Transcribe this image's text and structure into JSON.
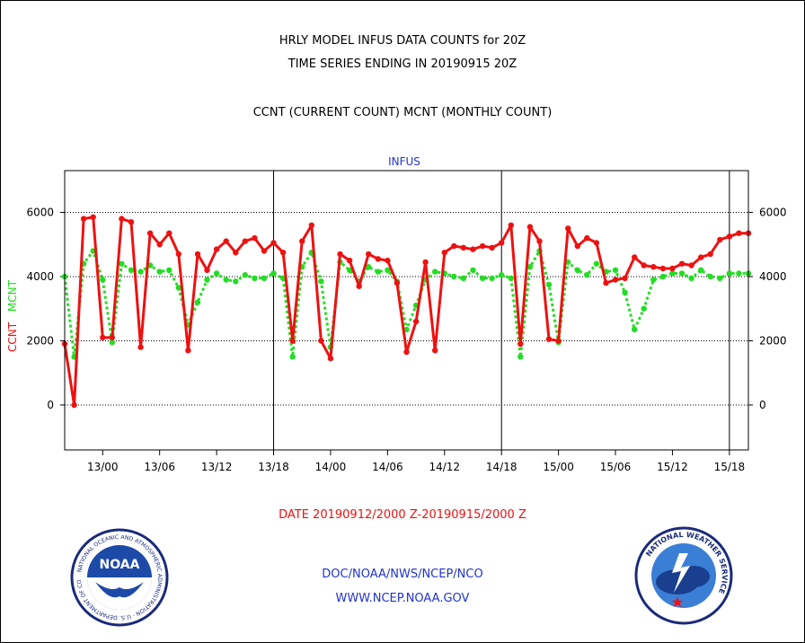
{
  "header": {
    "title1": "HRLY MODEL INFUS DATA COUNTS for 20Z",
    "title2": "TIME SERIES ENDING IN 20190915 20Z",
    "subtitle": "CCNT (CURRENT COUNT) MCNT (MONTHLY COUNT)"
  },
  "footer": {
    "date_range": "DATE 20190912/2000 Z-20190915/2000 Z",
    "org": "DOC/NOAA/NWS/NCEP/NCO",
    "url": "WWW.NCEP.NOAA.GOV"
  },
  "logos": {
    "noaa": "NOAA",
    "noaa_ring": "NATIONAL OCEANIC AND ATMOSPHERIC ADMINISTRATION · U.S. DEPARTMENT OF COMMERCE",
    "nws_ring": "NATIONAL WEATHER SERVICE"
  },
  "colors": {
    "ccnt": "#ee1111",
    "mcnt": "#22dd22",
    "axis_text": "#000000",
    "label_blue": "#2233cc"
  },
  "chart_data": {
    "type": "line",
    "title": "INFUS",
    "ylabel_series": [
      "CCNT",
      "MCNT"
    ],
    "ylim": [
      -1400,
      7300
    ],
    "yticks": [
      0,
      2000,
      4000,
      6000
    ],
    "xlim": [
      0,
      72
    ],
    "xticks": [
      {
        "x": 4,
        "label": "13/00"
      },
      {
        "x": 10,
        "label": "13/06"
      },
      {
        "x": 16,
        "label": "13/12"
      },
      {
        "x": 22,
        "label": "13/18"
      },
      {
        "x": 28,
        "label": "14/00"
      },
      {
        "x": 34,
        "label": "14/06"
      },
      {
        "x": 40,
        "label": "14/12"
      },
      {
        "x": 46,
        "label": "14/18"
      },
      {
        "x": 52,
        "label": "15/00"
      },
      {
        "x": 58,
        "label": "15/06"
      },
      {
        "x": 64,
        "label": "15/12"
      },
      {
        "x": 70,
        "label": "15/18"
      }
    ],
    "vlines": [
      22,
      46,
      70
    ],
    "grid": "horizontal dotted",
    "series": [
      {
        "name": "CCNT",
        "values": [
          1900,
          0,
          5800,
          5850,
          2100,
          2100,
          5800,
          5700,
          1800,
          5350,
          5000,
          5350,
          4700,
          1700,
          4700,
          4200,
          4850,
          5100,
          4750,
          5100,
          5200,
          4800,
          5050,
          4750,
          2000,
          5100,
          5600,
          2000,
          1450,
          4700,
          4500,
          3700,
          4700,
          4550,
          4500,
          3800,
          1650,
          2600,
          4450,
          1700,
          4750,
          4950,
          4900,
          4850,
          4950,
          4900,
          5050,
          5600,
          1900,
          5550,
          5100,
          2050,
          2000,
          5500,
          4950,
          5200,
          5050,
          3800,
          3900,
          3950,
          4600,
          4350,
          4300,
          4250,
          4250,
          4400,
          4350,
          4600,
          4700,
          5150,
          5250,
          5350,
          5350
        ]
      },
      {
        "name": "MCNT",
        "values": [
          4000,
          1500,
          4400,
          4800,
          3900,
          1950,
          4400,
          4200,
          4150,
          4350,
          4150,
          4200,
          3650,
          2500,
          3200,
          3900,
          4100,
          3900,
          3850,
          4050,
          3950,
          3950,
          4100,
          3950,
          1500,
          4300,
          4750,
          3850,
          1800,
          4450,
          4200,
          3850,
          4300,
          4150,
          4200,
          3850,
          2350,
          3100,
          3900,
          4150,
          4100,
          4000,
          3950,
          4200,
          3950,
          3950,
          4050,
          3950,
          1500,
          4300,
          4800,
          3750,
          1950,
          4450,
          4200,
          4050,
          4400,
          4150,
          4200,
          3500,
          2350,
          3000,
          3900,
          4000,
          4100,
          4100,
          3950,
          4200,
          4000,
          3950,
          4100,
          4100,
          4100
        ]
      }
    ]
  }
}
